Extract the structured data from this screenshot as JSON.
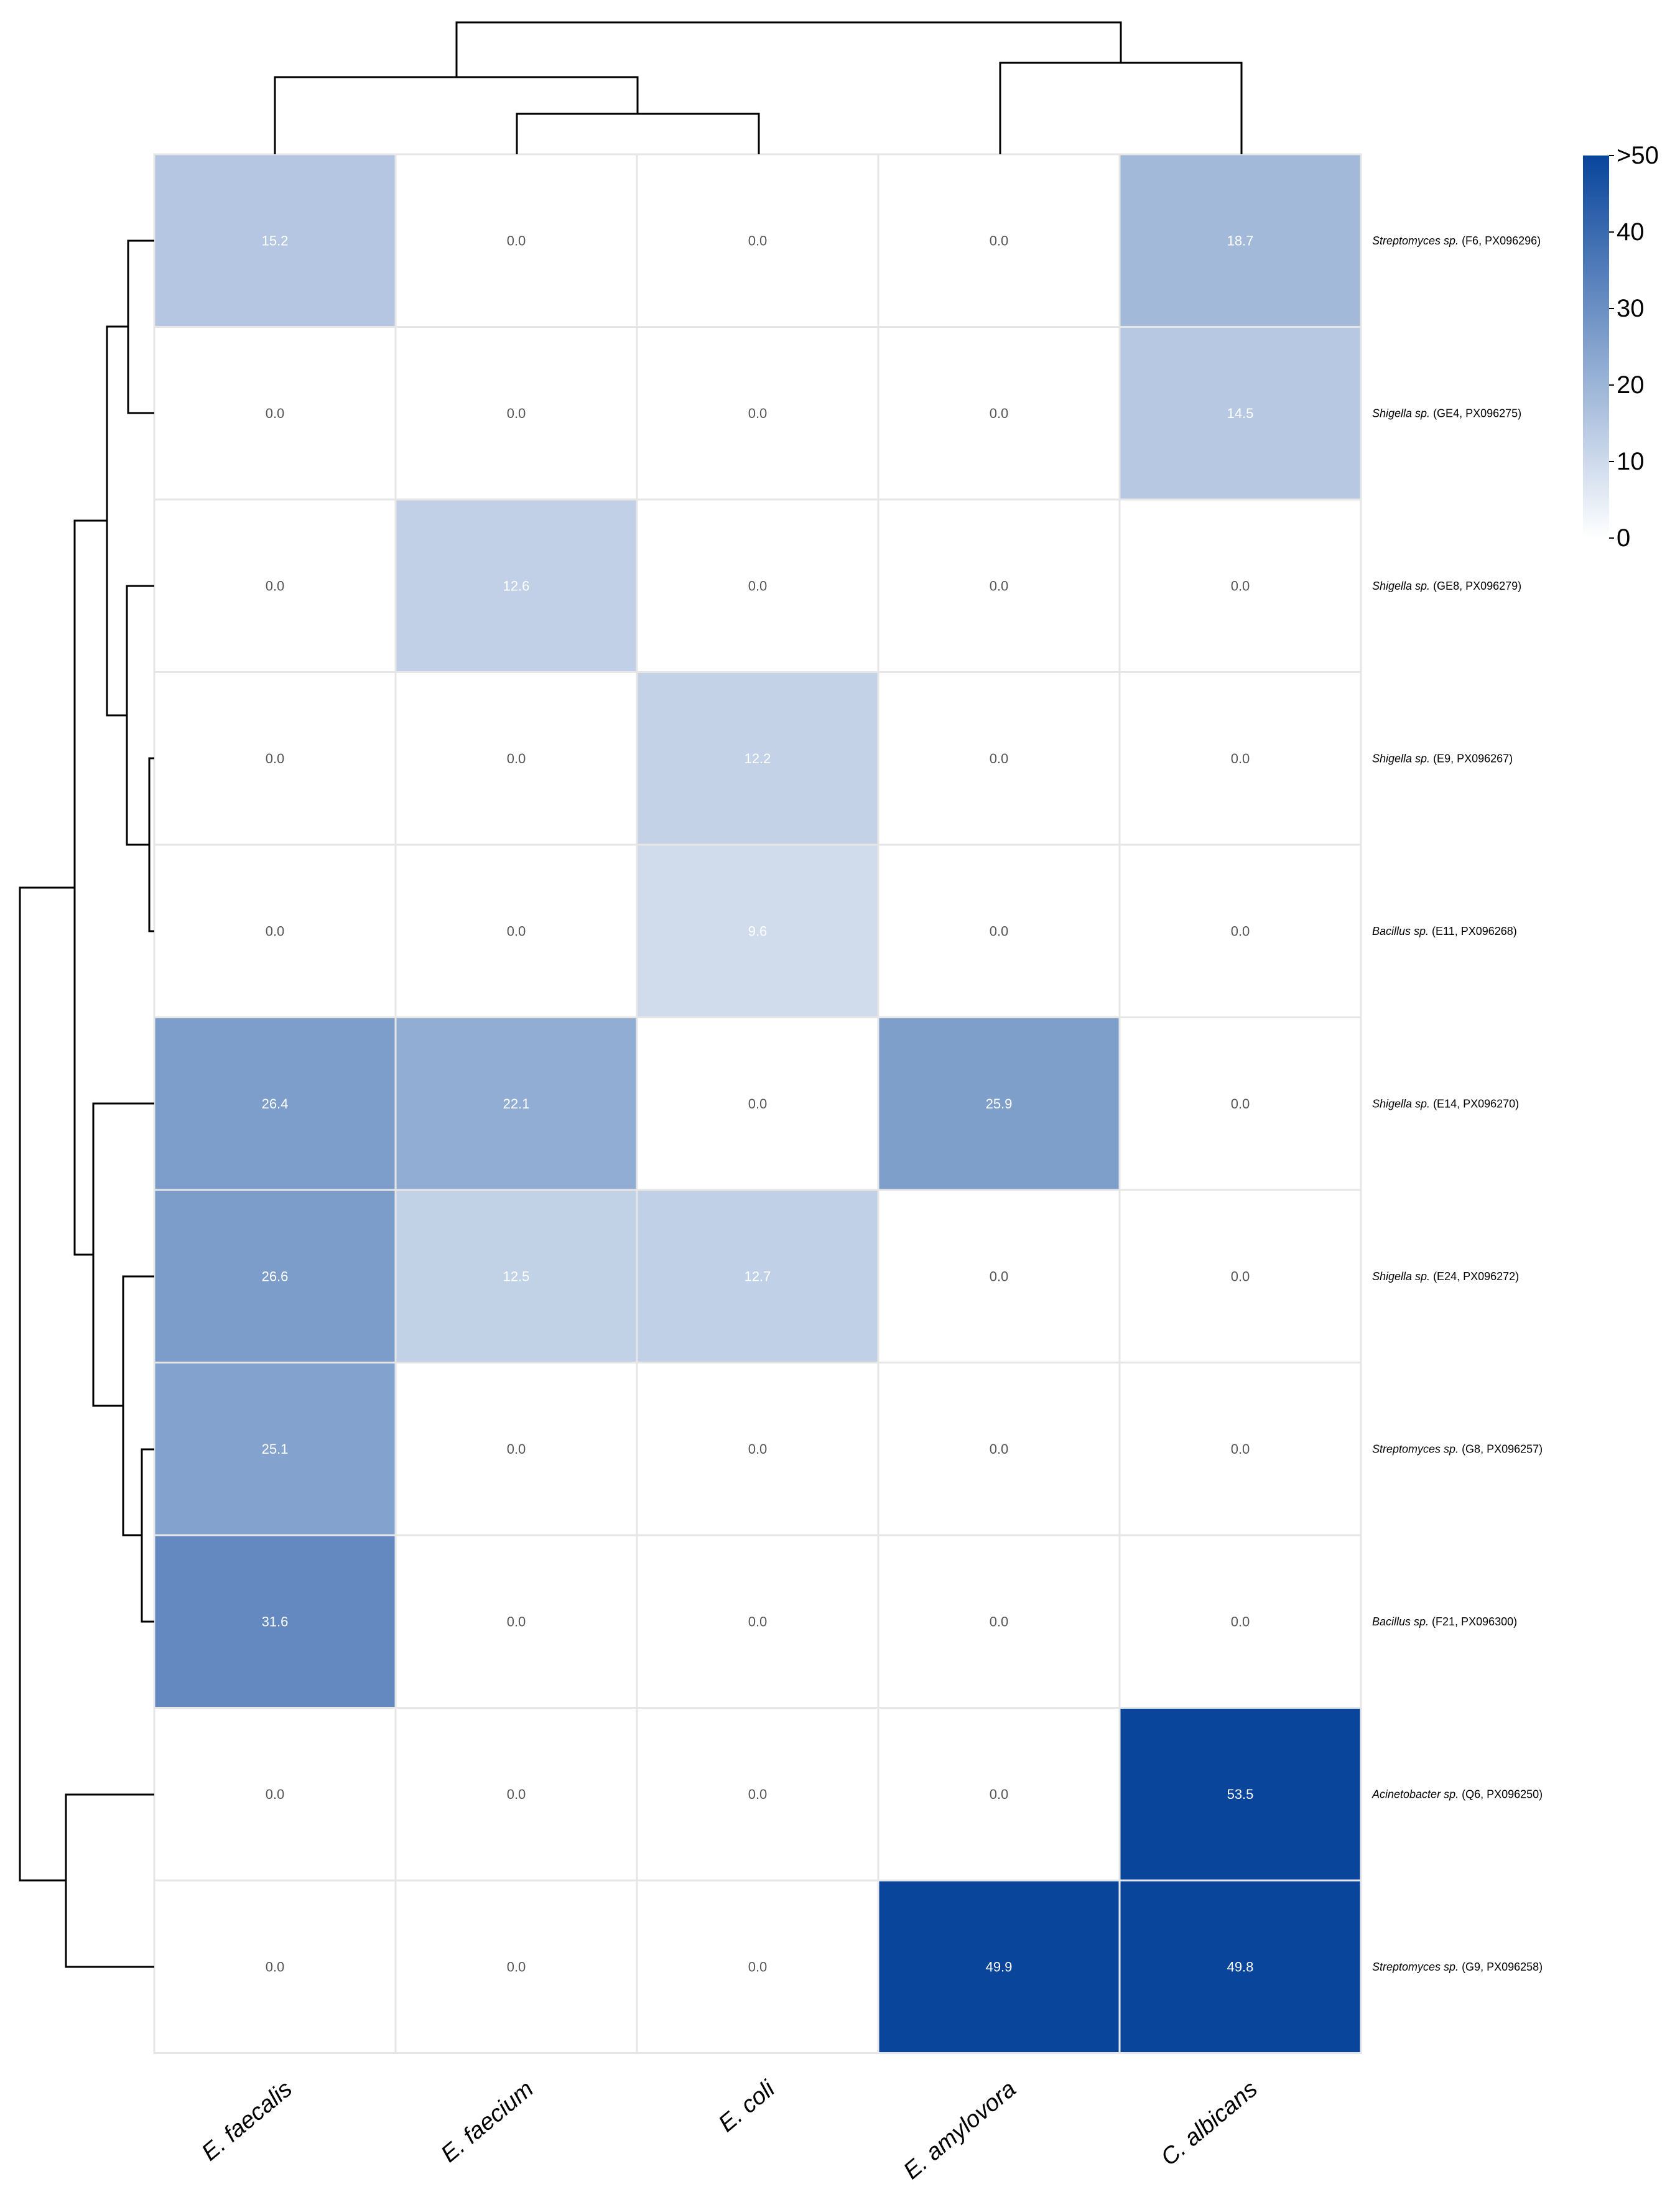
{
  "chart_data": {
    "type": "heatmap",
    "title": "",
    "columns": [
      "E. faecalis",
      "E. faecium",
      "E. coli",
      "E. amylovora",
      "C. albicans"
    ],
    "rows": [
      {
        "genus": "Streptomyces sp.",
        "id": "(F6, PX096296)"
      },
      {
        "genus": "Shigella sp.",
        "id": "(GE4, PX096275)"
      },
      {
        "genus": "Shigella sp.",
        "id": "(GE8, PX096279)"
      },
      {
        "genus": "Shigella sp.",
        "id": "(E9, PX096267)"
      },
      {
        "genus": "Bacillus sp.",
        "id": "(E11, PX096268)"
      },
      {
        "genus": "Shigella sp.",
        "id": "(E14, PX096270)"
      },
      {
        "genus": "Shigella sp.",
        "id": "(E24, PX096272)"
      },
      {
        "genus": "Streptomyces sp.",
        "id": "(G8, PX096257)"
      },
      {
        "genus": "Bacillus sp.",
        "id": "(F21, PX096300)"
      },
      {
        "genus": "Acinetobacter sp.",
        "id": "(Q6, PX096250)"
      },
      {
        "genus": "Streptomyces sp.",
        "id": "(G9, PX096258)"
      }
    ],
    "values": [
      [
        15.2,
        0.0,
        0.0,
        0.0,
        18.7
      ],
      [
        0.0,
        0.0,
        0.0,
        0.0,
        14.5
      ],
      [
        0.0,
        12.6,
        0.0,
        0.0,
        0.0
      ],
      [
        0.0,
        0.0,
        12.2,
        0.0,
        0.0
      ],
      [
        0.0,
        0.0,
        9.6,
        0.0,
        0.0
      ],
      [
        26.4,
        22.1,
        0.0,
        25.9,
        0.0
      ],
      [
        26.6,
        12.5,
        12.7,
        0.0,
        0.0
      ],
      [
        25.1,
        0.0,
        0.0,
        0.0,
        0.0
      ],
      [
        31.6,
        0.0,
        0.0,
        0.0,
        0.0
      ],
      [
        0.0,
        0.0,
        0.0,
        0.0,
        53.5
      ],
      [
        0.0,
        0.0,
        0.0,
        49.9,
        49.8
      ]
    ],
    "value_labels": [
      [
        "15.2",
        "0.0",
        "0.0",
        "0.0",
        "18.7"
      ],
      [
        "0.0",
        "0.0",
        "0.0",
        "0.0",
        "14.5"
      ],
      [
        "0.0",
        "12.6",
        "0.0",
        "0.0",
        "0.0"
      ],
      [
        "0.0",
        "0.0",
        "12.2",
        "0.0",
        "0.0"
      ],
      [
        "0.0",
        "0.0",
        "9.6",
        "0.0",
        "0.0"
      ],
      [
        "26.4",
        "22.1",
        "0.0",
        "25.9",
        "0.0"
      ],
      [
        "26.6",
        "12.5",
        "12.7",
        "0.0",
        "0.0"
      ],
      [
        "25.1",
        "0.0",
        "0.0",
        "0.0",
        "0.0"
      ],
      [
        "31.6",
        "0.0",
        "0.0",
        "0.0",
        "0.0"
      ],
      [
        "0.0",
        "0.0",
        "0.0",
        "0.0",
        "53.5"
      ],
      [
        "0.0",
        "0.0",
        "0.0",
        "49.9",
        "49.8"
      ]
    ],
    "colorbar": {
      "min": 0,
      "max": 50,
      "ticks": [
        0,
        10,
        20,
        30,
        40,
        50
      ],
      "tick_labels": [
        "0",
        "10",
        "20",
        "30",
        "40",
        ">50"
      ],
      "low_color": "#ffffff",
      "high_color": "#08459b"
    },
    "column_dendrogram": [
      [
        1,
        2
      ],
      [
        0,
        "1+2"
      ],
      [
        3,
        4
      ],
      [
        "0+1+2",
        "3+4"
      ]
    ],
    "row_dendrogram": [
      [
        0,
        1
      ],
      [
        3,
        4
      ],
      [
        2,
        "3+4"
      ],
      [
        "0+1",
        "2+3+4"
      ],
      [
        7,
        8
      ],
      [
        6,
        "7+8"
      ],
      [
        5,
        "6+7+8"
      ],
      [
        "0-4",
        "5-8"
      ],
      [
        9,
        10
      ],
      [
        "0-8",
        "9+10"
      ]
    ],
    "grid_color": "#e6e6e6",
    "text_color_light": "#ffffff",
    "text_color_dark": "#555555"
  }
}
